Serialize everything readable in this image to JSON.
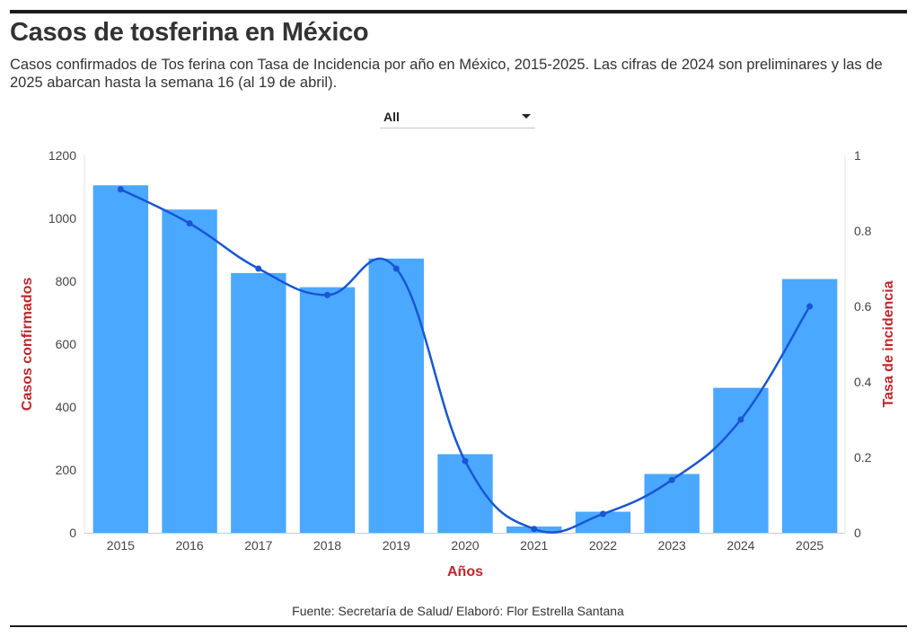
{
  "header": {
    "title": "Casos de tosferina en México",
    "subtitle": "Casos confirmados de Tos ferina con Tasa de Incidencia por año en México, 2015-2025. Las cifras de 2024 son preliminares y las de 2025 abarcan hasta la semana 16 (al 19 de abril)."
  },
  "filter": {
    "selected": "All",
    "icon": "chevron-down-icon"
  },
  "chart_data": {
    "type": "bar",
    "categories": [
      "2015",
      "2016",
      "2017",
      "2018",
      "2019",
      "2020",
      "2021",
      "2022",
      "2023",
      "2024",
      "2025"
    ],
    "series": [
      {
        "values": [
          1105,
          1028,
          826,
          781,
          872,
          250,
          20,
          67,
          187,
          461,
          807
        ],
        "type": "bar",
        "axis": "left",
        "color": "#4aa8ff"
      },
      {
        "values": [
          0.91,
          0.82,
          0.7,
          0.63,
          0.7,
          0.19,
          0.01,
          0.05,
          0.14,
          0.3,
          0.6
        ],
        "type": "line",
        "axis": "right",
        "color": "#1856d4"
      }
    ],
    "xlabel": "Años",
    "ylabel": "Casos confirmados",
    "y2label": "Tasa de incidencia",
    "ylim": [
      0,
      1200
    ],
    "y2lim": [
      0,
      1
    ],
    "yticks": [
      "0",
      "200",
      "400",
      "600",
      "800",
      "1000",
      "1200"
    ],
    "y2ticks": [
      "0",
      "0.2",
      "0.4",
      "0.6",
      "0.8",
      "1"
    ],
    "grid": false,
    "axis_label_color": "#c0252a"
  },
  "footer": {
    "source": "Fuente: Secretaría de Salud/ Elaboró: Flor Estrella Santana"
  }
}
